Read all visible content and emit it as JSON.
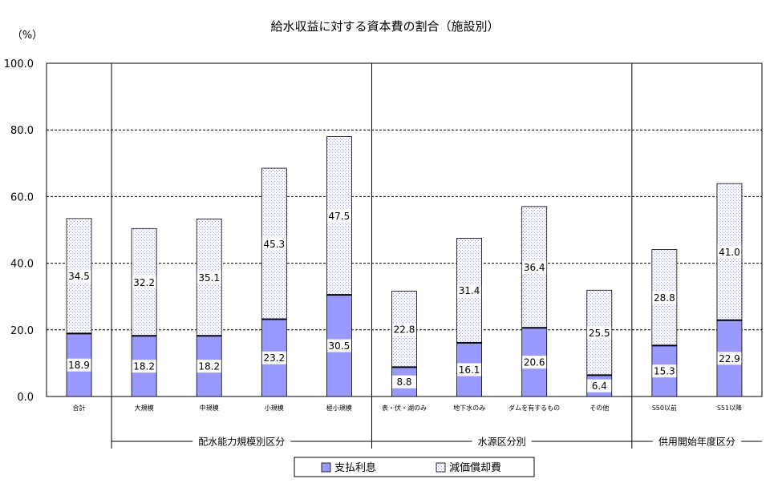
{
  "chart_data": {
    "type": "bar",
    "stacked": true,
    "title": "給水収益に対する資本費の割合（施設別）",
    "yunit": "（%）",
    "ylim": [
      0,
      100
    ],
    "yticks": [
      0,
      20,
      40,
      60,
      80,
      100
    ],
    "grid": true,
    "categories": [
      "合計",
      "大規模",
      "中規模",
      "小規模",
      "極小規模",
      "表・伏・湖のみ",
      "地下水のみ",
      "ダムを有するもの",
      "その他",
      "S50以前",
      "S51以降"
    ],
    "series": [
      {
        "name": "支払利息",
        "values": [
          18.9,
          18.2,
          18.2,
          23.2,
          30.5,
          8.8,
          16.1,
          20.6,
          6.4,
          15.3,
          22.9
        ]
      },
      {
        "name": "減価償却費",
        "values": [
          34.5,
          32.2,
          35.1,
          45.3,
          47.5,
          22.8,
          31.4,
          36.4,
          25.5,
          28.8,
          41.0
        ]
      }
    ],
    "groups": [
      {
        "label": "配水能力規模別区分",
        "categories": [
          "大規模",
          "中規模",
          "小規模",
          "極小規模"
        ]
      },
      {
        "label": "水源区分別",
        "categories": [
          "表・伏・湖のみ",
          "地下水のみ",
          "ダムを有するもの",
          "その他"
        ]
      },
      {
        "label": "供用開始年度区分",
        "categories": [
          "S50以前",
          "S51以降"
        ]
      }
    ],
    "legend_position": "bottom",
    "colors": {
      "interest": "#9999ff",
      "depreciation": "#e2e2f4",
      "axis": "#000000"
    }
  }
}
